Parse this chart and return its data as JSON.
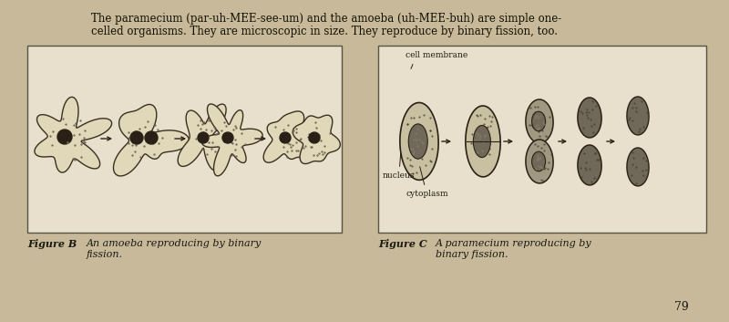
{
  "bg_color": "#c8b99a",
  "box_face": "#e8e0cc",
  "box_edge": "#555544",
  "header_text_line1": "The paramecium (par-uh-MEE-see-um) and the amoeba (uh-MEE-buh) are simple one-",
  "header_text_line2": "celled organisms. They are microscopic in size. They reproduce by binary fission, too.",
  "amoeba_face": "#e0d8b8",
  "amoeba_edge": "#3a3020",
  "amoeba_stipple": "#6a6050",
  "nucleus_color": "#2a2015",
  "param_face_light": "#c8c0a0",
  "param_face_mid": "#a09880",
  "param_face_dark": "#706858",
  "param_edge": "#2a2015",
  "arrow_color": "#2a2015",
  "label_color": "#1a1a10",
  "caption_color": "#1a1a10",
  "page_num_color": "#1a1a10",
  "fig_b_label": "Figure B",
  "fig_b_caption": "An amoeba reproducing by binary\nfission.",
  "fig_c_label": "Figure C",
  "fig_c_caption": "A paramecium reproducing by\nbinary fission.",
  "label_cell_membrane": "cell membrane",
  "label_nucleus": "nucleus",
  "label_cytoplasm": "cytoplasm",
  "page_number": "79"
}
